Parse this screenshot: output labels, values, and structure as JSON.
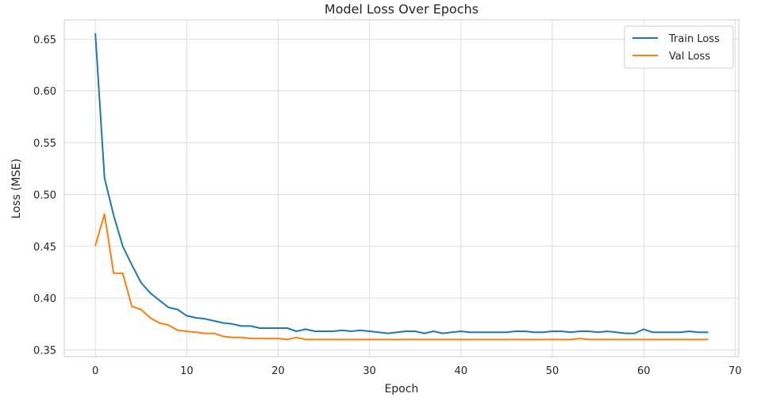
{
  "chart_data": {
    "type": "line",
    "title": "Model Loss Over Epochs",
    "xlabel": "Epoch",
    "ylabel": "Loss (MSE)",
    "xlim": [
      -3.4,
      70.4
    ],
    "ylim": [
      0.3435,
      0.6686
    ],
    "xticks": [
      0,
      10,
      20,
      30,
      40,
      50,
      60,
      70
    ],
    "yticks": [
      0.35,
      0.4,
      0.45,
      0.5,
      0.55,
      0.6,
      0.65
    ],
    "ytick_labels": [
      "0.35",
      "0.40",
      "0.45",
      "0.50",
      "0.55",
      "0.60",
      "0.65"
    ],
    "grid": true,
    "legend_position": "top-right",
    "x": [
      0,
      1,
      2,
      3,
      4,
      5,
      6,
      7,
      8,
      9,
      10,
      11,
      12,
      13,
      14,
      15,
      16,
      17,
      18,
      19,
      20,
      21,
      22,
      23,
      24,
      25,
      26,
      27,
      28,
      29,
      30,
      31,
      32,
      33,
      34,
      35,
      36,
      37,
      38,
      39,
      40,
      41,
      42,
      43,
      44,
      45,
      46,
      47,
      48,
      49,
      50,
      51,
      52,
      53,
      54,
      55,
      56,
      57,
      58,
      59,
      60,
      61,
      62,
      63,
      64,
      65,
      66,
      67
    ],
    "series": [
      {
        "name": "Train Loss",
        "color": "#1f77b4",
        "values": [
          0.655,
          0.516,
          0.48,
          0.45,
          0.432,
          0.415,
          0.405,
          0.398,
          0.391,
          0.389,
          0.383,
          0.381,
          0.38,
          0.378,
          0.376,
          0.375,
          0.373,
          0.373,
          0.371,
          0.371,
          0.371,
          0.371,
          0.368,
          0.37,
          0.368,
          0.368,
          0.368,
          0.369,
          0.368,
          0.369,
          0.368,
          0.367,
          0.366,
          0.367,
          0.368,
          0.368,
          0.366,
          0.368,
          0.366,
          0.367,
          0.368,
          0.367,
          0.367,
          0.367,
          0.367,
          0.367,
          0.368,
          0.368,
          0.367,
          0.367,
          0.368,
          0.368,
          0.367,
          0.368,
          0.368,
          0.367,
          0.368,
          0.367,
          0.366,
          0.366,
          0.37,
          0.367,
          0.367,
          0.367,
          0.367,
          0.368,
          0.367,
          0.367
        ]
      },
      {
        "name": "Val Loss",
        "color": "#ff7f0e",
        "values": [
          0.451,
          0.481,
          0.424,
          0.424,
          0.392,
          0.389,
          0.381,
          0.376,
          0.374,
          0.369,
          0.368,
          0.367,
          0.366,
          0.366,
          0.363,
          0.362,
          0.362,
          0.361,
          0.361,
          0.361,
          0.361,
          0.36,
          0.362,
          0.36,
          0.36,
          0.36,
          0.36,
          0.36,
          0.36,
          0.36,
          0.36,
          0.36,
          0.36,
          0.36,
          0.36,
          0.36,
          0.36,
          0.36,
          0.36,
          0.36,
          0.36,
          0.36,
          0.36,
          0.36,
          0.36,
          0.36,
          0.36,
          0.36,
          0.36,
          0.36,
          0.36,
          0.36,
          0.36,
          0.361,
          0.36,
          0.36,
          0.36,
          0.36,
          0.36,
          0.36,
          0.36,
          0.36,
          0.36,
          0.36,
          0.36,
          0.36,
          0.36,
          0.36
        ]
      }
    ]
  }
}
